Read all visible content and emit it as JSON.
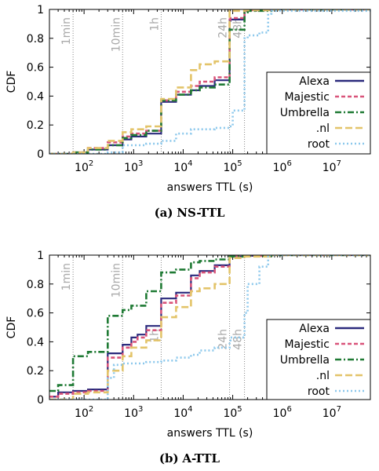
{
  "colors": {
    "alexa": "#2b2a7d",
    "majestic": "#d9547a",
    "umbrella": "#1f7a34",
    "nl": "#e3c46a",
    "root": "#8cc8ec",
    "marker": "#a9a9a9"
  },
  "chart_data": [
    {
      "type": "line",
      "subtype": "step-cdf",
      "caption_letter": "(a)",
      "caption_title": "NS-TTL",
      "xlabel": "answers TTL (s)",
      "ylabel": "CDF",
      "x_scale": "log",
      "xlim": [
        20,
        60000000
      ],
      "ylim": [
        0,
        1
      ],
      "x_ticks": [
        {
          "mant": "10",
          "exp": "2",
          "v": 100
        },
        {
          "mant": "10",
          "exp": "3",
          "v": 1000
        },
        {
          "mant": "10",
          "exp": "4",
          "v": 10000
        },
        {
          "mant": "10",
          "exp": "5",
          "v": 100000
        },
        {
          "mant": "10",
          "exp": "6",
          "v": 1000000
        },
        {
          "mant": "10",
          "exp": "7",
          "v": 10000000
        }
      ],
      "y_ticks": [
        "0",
        "0.2",
        "0.4",
        "0.6",
        "0.8",
        "1"
      ],
      "legend_position": "bottom-right",
      "markers": [
        {
          "label": "1min",
          "x": 60
        },
        {
          "label": "10min",
          "x": 600
        },
        {
          "label": "1h",
          "x": 3600
        },
        {
          "label": "24h",
          "x": 86400
        },
        {
          "label": "48h",
          "x": 172800
        }
      ],
      "series": [
        {
          "key": "alexa",
          "name": "Alexa",
          "dash": "",
          "x": [
            20,
            60,
            120,
            300,
            600,
            900,
            1800,
            3600,
            7200,
            14400,
            21600,
            43200,
            86400,
            90000,
            172800,
            200000,
            604800,
            60000000
          ],
          "y": [
            0,
            0.01,
            0.03,
            0.06,
            0.1,
            0.12,
            0.14,
            0.36,
            0.41,
            0.44,
            0.47,
            0.51,
            0.92,
            0.93,
            0.99,
            0.995,
            1.0,
            1.0
          ]
        },
        {
          "key": "majestic",
          "name": "Majestic",
          "dash": "5,3",
          "x": [
            20,
            60,
            120,
            300,
            600,
            900,
            1800,
            3600,
            7200,
            14400,
            21600,
            43200,
            86400,
            90000,
            172800,
            200000,
            604800,
            60000000
          ],
          "y": [
            0,
            0.01,
            0.04,
            0.08,
            0.12,
            0.14,
            0.16,
            0.37,
            0.43,
            0.47,
            0.5,
            0.53,
            0.93,
            0.94,
            0.99,
            0.995,
            1.0,
            1.0
          ]
        },
        {
          "key": "umbrella",
          "name": "Umbrella",
          "dash": "8,3,2,3",
          "x": [
            20,
            60,
            120,
            300,
            600,
            900,
            1800,
            3600,
            7200,
            14400,
            21600,
            43200,
            86400,
            172800,
            200000,
            604800,
            60000000
          ],
          "y": [
            0,
            0.01,
            0.03,
            0.06,
            0.11,
            0.13,
            0.16,
            0.37,
            0.41,
            0.44,
            0.46,
            0.48,
            0.86,
            0.98,
            0.99,
            1.0,
            1.0
          ]
        },
        {
          "key": "nl",
          "name": ".nl",
          "dash": "9,4",
          "x": [
            20,
            60,
            120,
            300,
            600,
            900,
            1800,
            3600,
            7200,
            14400,
            21600,
            43200,
            86400,
            172800,
            604800,
            60000000
          ],
          "y": [
            0,
            0.01,
            0.04,
            0.09,
            0.15,
            0.17,
            0.19,
            0.38,
            0.46,
            0.58,
            0.62,
            0.64,
            0.99,
            0.995,
            1.0,
            1.0
          ]
        },
        {
          "key": "root",
          "name": "root",
          "dash": "2,3",
          "x": [
            20,
            300,
            600,
            1800,
            3600,
            7200,
            14400,
            43200,
            86400,
            100000,
            172800,
            200000,
            345600,
            518400,
            604800,
            60000000
          ],
          "y": [
            0,
            0.01,
            0.06,
            0.07,
            0.09,
            0.14,
            0.17,
            0.18,
            0.19,
            0.3,
            0.8,
            0.82,
            0.84,
            0.97,
            0.99,
            1.0
          ]
        }
      ]
    },
    {
      "type": "line",
      "subtype": "step-cdf",
      "caption_letter": "(b)",
      "caption_title": "A-TTL",
      "xlabel": "answers TTL (s)",
      "ylabel": "CDF",
      "x_scale": "log",
      "xlim": [
        20,
        60000000
      ],
      "ylim": [
        0,
        1
      ],
      "x_ticks": [
        {
          "mant": "10",
          "exp": "2",
          "v": 100
        },
        {
          "mant": "10",
          "exp": "3",
          "v": 1000
        },
        {
          "mant": "10",
          "exp": "4",
          "v": 10000
        },
        {
          "mant": "10",
          "exp": "5",
          "v": 100000
        },
        {
          "mant": "10",
          "exp": "6",
          "v": 1000000
        },
        {
          "mant": "10",
          "exp": "7",
          "v": 10000000
        }
      ],
      "y_ticks": [
        "0",
        "0.2",
        "0.4",
        "0.6",
        "0.8",
        "1"
      ],
      "legend_position": "bottom-right",
      "markers": [
        {
          "label": "1min",
          "x": 60
        },
        {
          "label": "10min",
          "x": 600
        },
        {
          "label": "1h",
          "x": 3600
        },
        {
          "label": "24h",
          "x": 86400
        },
        {
          "label": "48h",
          "x": 172800
        }
      ],
      "series": [
        {
          "key": "alexa",
          "name": "Alexa",
          "dash": "",
          "x": [
            20,
            30,
            60,
            120,
            300,
            600,
            900,
            1200,
            1800,
            3600,
            7200,
            14400,
            21600,
            43200,
            86400,
            172800,
            604800,
            60000000
          ],
          "y": [
            0.02,
            0.05,
            0.06,
            0.07,
            0.32,
            0.38,
            0.43,
            0.45,
            0.51,
            0.7,
            0.74,
            0.86,
            0.89,
            0.93,
            0.99,
            0.995,
            1.0,
            1.0
          ]
        },
        {
          "key": "majestic",
          "name": "Majestic",
          "dash": "5,3",
          "x": [
            20,
            30,
            60,
            120,
            300,
            600,
            900,
            1200,
            1800,
            3600,
            7200,
            14400,
            21600,
            43200,
            86400,
            172800,
            604800,
            60000000
          ],
          "y": [
            0.02,
            0.04,
            0.05,
            0.06,
            0.29,
            0.36,
            0.4,
            0.43,
            0.48,
            0.67,
            0.72,
            0.84,
            0.88,
            0.92,
            0.99,
            0.995,
            1.0,
            1.0
          ]
        },
        {
          "key": "umbrella",
          "name": "Umbrella",
          "dash": "8,3,2,3",
          "x": [
            20,
            30,
            60,
            120,
            300,
            600,
            900,
            1800,
            3600,
            7200,
            14400,
            21600,
            43200,
            86400,
            172800,
            604800,
            60000000
          ],
          "y": [
            0.06,
            0.1,
            0.3,
            0.33,
            0.58,
            0.62,
            0.65,
            0.75,
            0.88,
            0.9,
            0.95,
            0.96,
            0.97,
            0.99,
            0.995,
            1.0,
            1.0
          ]
        },
        {
          "key": "nl",
          "name": ".nl",
          "dash": "9,4",
          "x": [
            20,
            60,
            120,
            300,
            600,
            900,
            1800,
            3600,
            7200,
            14400,
            21600,
            43200,
            86400,
            172800,
            604800,
            60000000
          ],
          "y": [
            0,
            0.04,
            0.05,
            0.2,
            0.3,
            0.36,
            0.41,
            0.57,
            0.64,
            0.75,
            0.77,
            0.8,
            0.98,
            0.99,
            1.0,
            1.0
          ]
        },
        {
          "key": "root",
          "name": "root",
          "dash": "2,3",
          "x": [
            20,
            300,
            400,
            600,
            1800,
            3600,
            7200,
            14400,
            21600,
            43200,
            86400,
            90000,
            172800,
            200000,
            345600,
            518400,
            604800,
            60000000
          ],
          "y": [
            0,
            0.15,
            0.24,
            0.25,
            0.26,
            0.27,
            0.29,
            0.31,
            0.34,
            0.36,
            0.41,
            0.43,
            0.6,
            0.8,
            0.92,
            1.0,
            1.0,
            1.0
          ]
        }
      ]
    }
  ]
}
